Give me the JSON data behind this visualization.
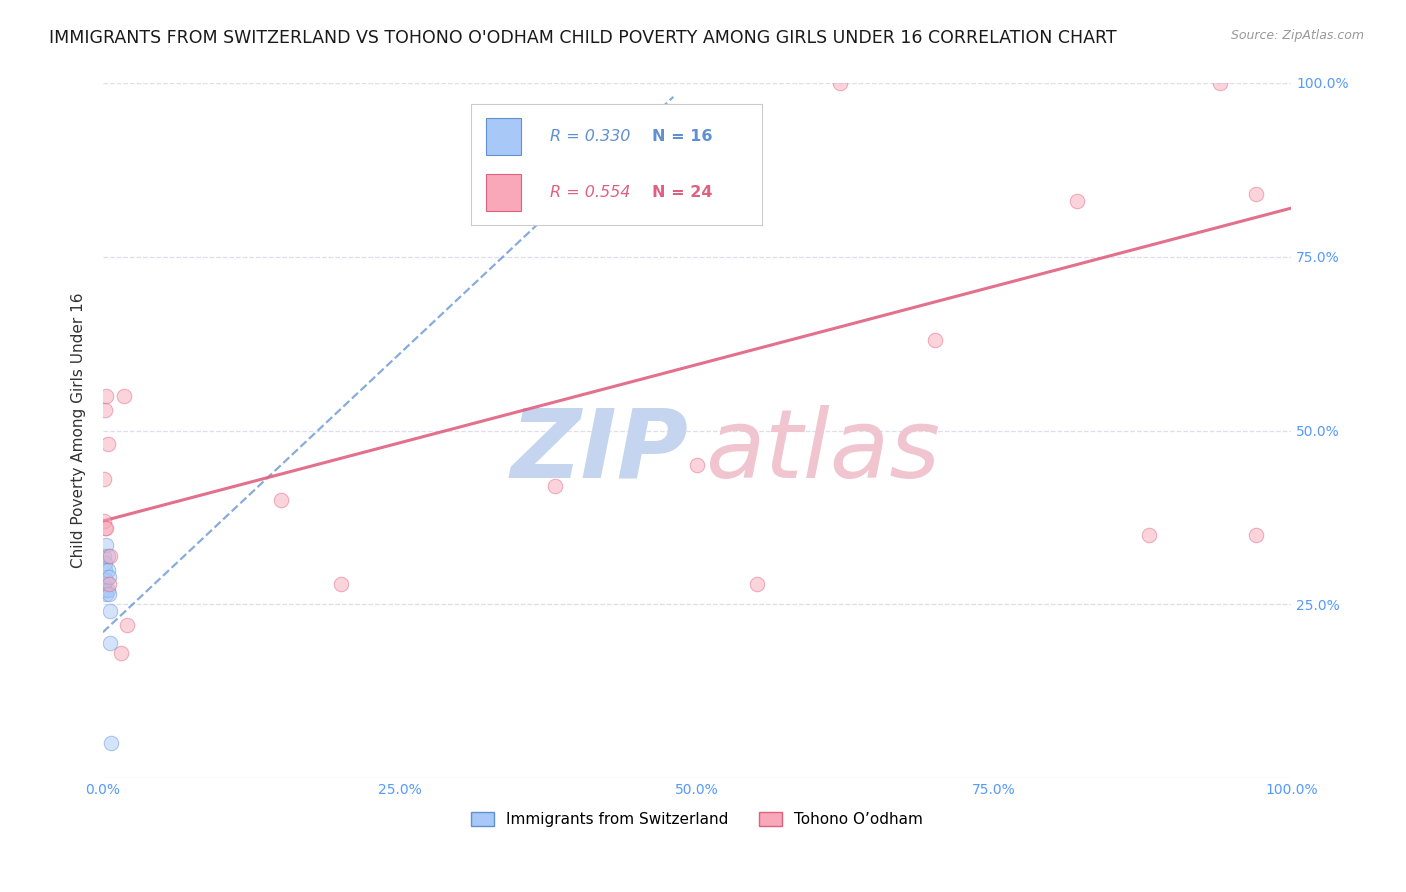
{
  "title": "IMMIGRANTS FROM SWITZERLAND VS TOHONO O'ODHAM CHILD POVERTY AMONG GIRLS UNDER 16 CORRELATION CHART",
  "source": "Source: ZipAtlas.com",
  "ylabel": "Child Poverty Among Girls Under 16",
  "legend_label1": "Immigrants from Switzerland",
  "legend_label2": "Tohono O’odham",
  "r1": 0.33,
  "n1": 16,
  "r2": 0.554,
  "n2": 24,
  "color1": "#a8c8f8",
  "color2": "#f8a8b8",
  "line_color1": "#6090d0",
  "line_color2": "#e06080",
  "xlim": [
    0.0,
    1.0
  ],
  "ylim": [
    0.0,
    1.0
  ],
  "xtick_vals": [
    0.0,
    0.25,
    0.5,
    0.75,
    1.0
  ],
  "ytick_vals": [
    0.25,
    0.5,
    0.75,
    1.0
  ],
  "grid_color": "#ddddee",
  "background_color": "#ffffff",
  "tick_color": "#5599ff",
  "title_fontsize": 12.5,
  "axis_label_fontsize": 11,
  "tick_fontsize": 10,
  "watermark_zip_color": "#c5d5f0",
  "watermark_atlas_color": "#f0c5d0",
  "scatter_blue_x": [
    0.001,
    0.001,
    0.002,
    0.002,
    0.002,
    0.003,
    0.003,
    0.003,
    0.004,
    0.004,
    0.004,
    0.005,
    0.005,
    0.006,
    0.006,
    0.007
  ],
  "scatter_blue_y": [
    0.28,
    0.32,
    0.3,
    0.27,
    0.31,
    0.285,
    0.265,
    0.335,
    0.3,
    0.27,
    0.32,
    0.265,
    0.29,
    0.24,
    0.195,
    0.05
  ],
  "scatter_pink_x": [
    0.001,
    0.001,
    0.002,
    0.002,
    0.003,
    0.003,
    0.004,
    0.005,
    0.006,
    0.015,
    0.018,
    0.02,
    0.15,
    0.38,
    0.62,
    0.7,
    0.82,
    0.88,
    0.94,
    0.97,
    0.97,
    0.55,
    0.5,
    0.2
  ],
  "scatter_pink_y": [
    0.37,
    0.43,
    0.53,
    0.36,
    0.36,
    0.55,
    0.48,
    0.28,
    0.32,
    0.18,
    0.55,
    0.22,
    0.4,
    0.42,
    1.0,
    0.63,
    0.83,
    0.35,
    1.0,
    0.35,
    0.84,
    0.28,
    0.45,
    0.28
  ],
  "marker_size": 110,
  "alpha": 0.5,
  "blue_trend_x0": 0.0,
  "blue_trend_x1": 0.48,
  "blue_trend_y0": 0.21,
  "blue_trend_y1": 0.98,
  "pink_trend_x0": 0.0,
  "pink_trend_x1": 1.0,
  "pink_trend_y0": 0.37,
  "pink_trend_y1": 0.82
}
